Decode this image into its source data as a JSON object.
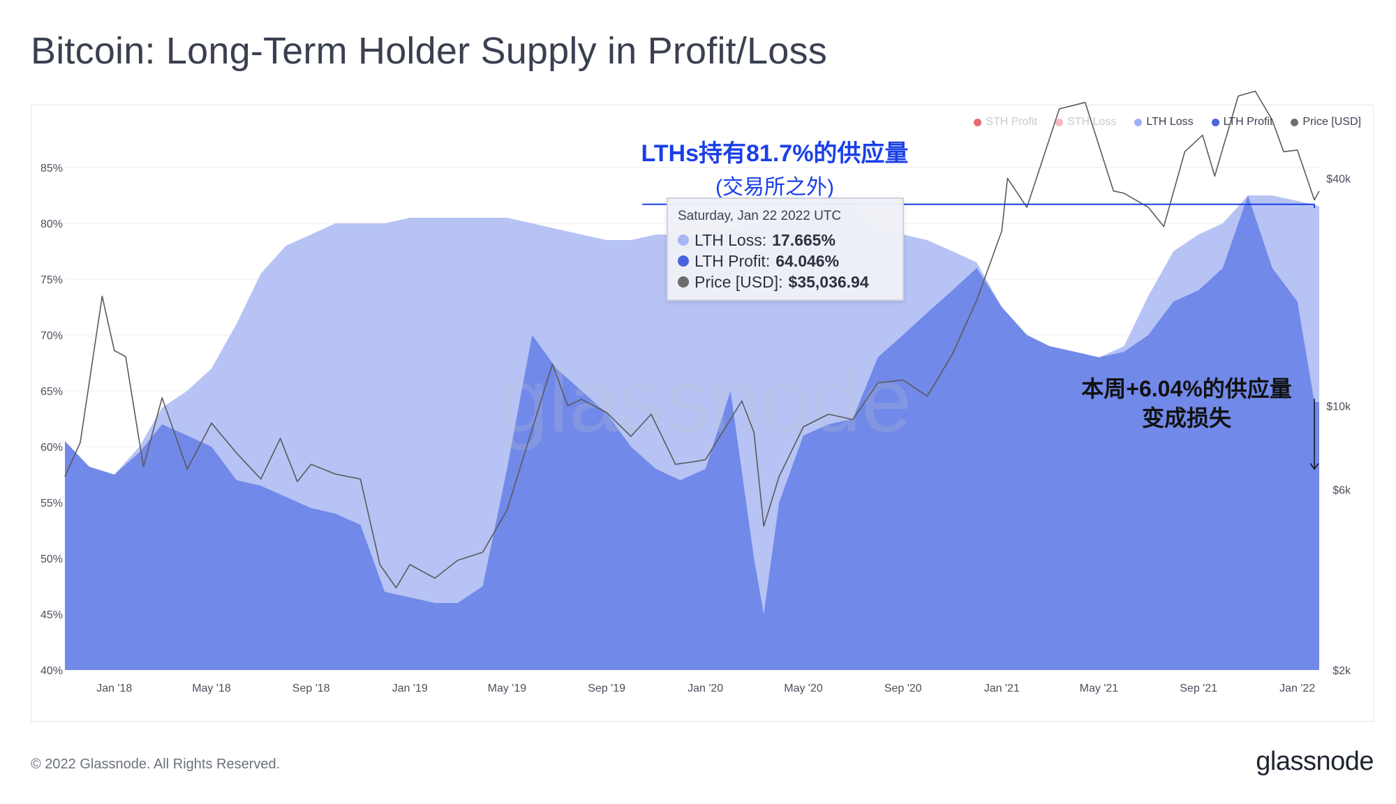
{
  "title": "Bitcoin: Long-Term Holder Supply in Profit/Loss",
  "legend": [
    {
      "label": "STH Profit",
      "color": "#e0353f",
      "faded": true
    },
    {
      "label": "STH Loss",
      "color": "#f0a0a6",
      "faded": true
    },
    {
      "label": "LTH Loss",
      "color": "#9fb1f2",
      "faded": false
    },
    {
      "label": "LTH Profit",
      "color": "#4866e0",
      "faded": false
    },
    {
      "label": "Price [USD]",
      "color": "#6f6f6f",
      "faded": false
    }
  ],
  "tooltip": {
    "date": "Saturday, Jan 22 2022 UTC",
    "rows": [
      {
        "label": "LTH Loss: ",
        "value": "17.665%",
        "color": "#a6b6f4"
      },
      {
        "label": "LTH Profit: ",
        "value": "64.046%",
        "color": "#4a62e0"
      },
      {
        "label": "Price [USD]: ",
        "value": "$35,036.94",
        "color": "#6c6c6c"
      }
    ]
  },
  "annotations": {
    "top_line1": "LTHs持有81.7%的供应量",
    "top_line2": "(交易所之外)",
    "right_line1": "本周+6.04%的供应量",
    "right_line2": "变成损失"
  },
  "watermark": "glassnode",
  "footer": {
    "copyright": "© 2022 Glassnode. All Rights Reserved.",
    "logo": "glassnode"
  },
  "colors": {
    "lth_profit": "#7189e8",
    "lth_loss": "#b6c3f4",
    "price": "#5a5a5a",
    "annotation": "#1a3fe8",
    "grid": "#eceef2"
  },
  "chart_data": {
    "type": "area",
    "x_start": "2017-11-01",
    "x_end": "2022-01-28",
    "x_tick_labels": [
      "Jan '18",
      "May '18",
      "Sep '18",
      "Jan '19",
      "May '19",
      "Sep '19",
      "Jan '20",
      "May '20",
      "Sep '20",
      "Jan '21",
      "May '21",
      "Sep '21",
      "Jan '22"
    ],
    "x_tick_dates": [
      "2018-01-01",
      "2018-05-01",
      "2018-09-01",
      "2019-01-01",
      "2019-05-01",
      "2019-09-01",
      "2020-01-01",
      "2020-05-01",
      "2020-09-01",
      "2021-01-01",
      "2021-05-01",
      "2021-09-01",
      "2022-01-01"
    ],
    "y_left": {
      "ylim": [
        40,
        90
      ],
      "tick_labels": [
        "40%",
        "45%",
        "50%",
        "55%",
        "60%",
        "65%",
        "70%",
        "75%",
        "80%",
        "85%"
      ],
      "tick_values": [
        40,
        45,
        50,
        55,
        60,
        65,
        70,
        75,
        80,
        85
      ]
    },
    "y_right": {
      "scale": "log",
      "ylim": [
        2000,
        60000
      ],
      "tick_labels": [
        "$2k",
        "$6k",
        "$10k",
        "$40k"
      ],
      "tick_values": [
        2000,
        6000,
        10000,
        40000
      ]
    },
    "series": [
      {
        "name": "LTH Profit",
        "stack": "area",
        "values": [
          [
            "2017-11-01",
            60.5
          ],
          [
            "2017-12-01",
            58.2
          ],
          [
            "2018-01-01",
            57.5
          ],
          [
            "2018-02-01",
            59.5
          ],
          [
            "2018-03-01",
            62.0
          ],
          [
            "2018-04-01",
            61.0
          ],
          [
            "2018-05-01",
            60.0
          ],
          [
            "2018-06-01",
            57.0
          ],
          [
            "2018-07-01",
            56.5
          ],
          [
            "2018-08-01",
            55.5
          ],
          [
            "2018-09-01",
            54.5
          ],
          [
            "2018-10-01",
            54.0
          ],
          [
            "2018-11-01",
            53.0
          ],
          [
            "2018-12-01",
            47.0
          ],
          [
            "2019-01-01",
            46.5
          ],
          [
            "2019-02-01",
            46.0
          ],
          [
            "2019-03-01",
            46.0
          ],
          [
            "2019-04-01",
            47.5
          ],
          [
            "2019-05-01",
            58.0
          ],
          [
            "2019-06-01",
            70.0
          ],
          [
            "2019-07-01",
            67.0
          ],
          [
            "2019-08-01",
            65.0
          ],
          [
            "2019-09-01",
            63.0
          ],
          [
            "2019-10-01",
            60.0
          ],
          [
            "2019-11-01",
            58.0
          ],
          [
            "2019-12-01",
            57.0
          ],
          [
            "2020-01-01",
            58.0
          ],
          [
            "2020-02-01",
            65.0
          ],
          [
            "2020-03-01",
            50.0
          ],
          [
            "2020-03-13",
            45.0
          ],
          [
            "2020-04-01",
            55.0
          ],
          [
            "2020-05-01",
            61.0
          ],
          [
            "2020-06-01",
            62.0
          ],
          [
            "2020-07-01",
            62.5
          ],
          [
            "2020-08-01",
            68.0
          ],
          [
            "2020-09-01",
            70.0
          ],
          [
            "2020-10-01",
            72.0
          ],
          [
            "2020-11-01",
            74.0
          ],
          [
            "2020-12-01",
            76.0
          ],
          [
            "2021-01-01",
            72.5
          ],
          [
            "2021-02-01",
            70.0
          ],
          [
            "2021-03-01",
            69.0
          ],
          [
            "2021-04-01",
            68.5
          ],
          [
            "2021-05-01",
            68.0
          ],
          [
            "2021-06-01",
            68.5
          ],
          [
            "2021-07-01",
            70.0
          ],
          [
            "2021-08-01",
            73.0
          ],
          [
            "2021-09-01",
            74.0
          ],
          [
            "2021-10-01",
            76.0
          ],
          [
            "2021-11-01",
            82.5
          ],
          [
            "2021-12-01",
            76.0
          ],
          [
            "2022-01-01",
            73.0
          ],
          [
            "2022-01-22",
            64.0
          ],
          [
            "2022-01-28",
            64.0
          ]
        ]
      },
      {
        "name": "LTH Loss",
        "stack": "area",
        "values": [
          [
            "2017-11-01",
            0.0
          ],
          [
            "2017-12-01",
            0.0
          ],
          [
            "2018-01-01",
            0.0
          ],
          [
            "2018-02-01",
            0.5
          ],
          [
            "2018-03-01",
            1.5
          ],
          [
            "2018-04-01",
            4.0
          ],
          [
            "2018-05-01",
            7.0
          ],
          [
            "2018-06-01",
            14.0
          ],
          [
            "2018-07-01",
            19.0
          ],
          [
            "2018-08-01",
            22.5
          ],
          [
            "2018-09-01",
            24.5
          ],
          [
            "2018-10-01",
            26.0
          ],
          [
            "2018-11-01",
            27.0
          ],
          [
            "2018-12-01",
            33.0
          ],
          [
            "2019-01-01",
            34.0
          ],
          [
            "2019-02-01",
            34.5
          ],
          [
            "2019-03-01",
            34.5
          ],
          [
            "2019-04-01",
            33.0
          ],
          [
            "2019-05-01",
            22.5
          ],
          [
            "2019-06-01",
            10.0
          ],
          [
            "2019-07-01",
            12.5
          ],
          [
            "2019-08-01",
            14.0
          ],
          [
            "2019-09-01",
            15.5
          ],
          [
            "2019-10-01",
            18.5
          ],
          [
            "2019-11-01",
            21.0
          ],
          [
            "2019-12-01",
            22.0
          ],
          [
            "2020-01-01",
            21.0
          ],
          [
            "2020-02-01",
            14.5
          ],
          [
            "2020-03-01",
            30.0
          ],
          [
            "2020-03-13",
            35.0
          ],
          [
            "2020-04-01",
            25.0
          ],
          [
            "2020-05-01",
            19.5
          ],
          [
            "2020-06-01",
            19.5
          ],
          [
            "2020-07-01",
            19.0
          ],
          [
            "2020-08-01",
            11.5
          ],
          [
            "2020-09-01",
            9.0
          ],
          [
            "2020-10-01",
            6.5
          ],
          [
            "2020-11-01",
            3.5
          ],
          [
            "2020-12-01",
            0.5
          ],
          [
            "2021-01-01",
            0.0
          ],
          [
            "2021-02-01",
            0.0
          ],
          [
            "2021-03-01",
            0.0
          ],
          [
            "2021-04-01",
            0.0
          ],
          [
            "2021-05-01",
            0.0
          ],
          [
            "2021-06-01",
            0.5
          ],
          [
            "2021-07-01",
            3.5
          ],
          [
            "2021-08-01",
            4.5
          ],
          [
            "2021-09-01",
            5.0
          ],
          [
            "2021-10-01",
            4.0
          ],
          [
            "2021-11-01",
            0.0
          ],
          [
            "2021-12-01",
            6.5
          ],
          [
            "2022-01-01",
            9.0
          ],
          [
            "2022-01-22",
            17.665
          ],
          [
            "2022-01-28",
            17.5
          ]
        ]
      },
      {
        "name": "Price [USD]",
        "axis": "right",
        "values": [
          [
            "2017-11-01",
            6500
          ],
          [
            "2017-11-20",
            8000
          ],
          [
            "2017-12-17",
            19500
          ],
          [
            "2018-01-01",
            14000
          ],
          [
            "2018-01-15",
            13500
          ],
          [
            "2018-02-06",
            6900
          ],
          [
            "2018-03-01",
            10500
          ],
          [
            "2018-04-01",
            6800
          ],
          [
            "2018-05-01",
            9000
          ],
          [
            "2018-06-01",
            7500
          ],
          [
            "2018-07-01",
            6400
          ],
          [
            "2018-07-25",
            8200
          ],
          [
            "2018-08-15",
            6300
          ],
          [
            "2018-09-01",
            7000
          ],
          [
            "2018-10-01",
            6600
          ],
          [
            "2018-11-01",
            6400
          ],
          [
            "2018-11-25",
            3800
          ],
          [
            "2018-12-15",
            3300
          ],
          [
            "2019-01-01",
            3800
          ],
          [
            "2019-02-01",
            3500
          ],
          [
            "2019-03-01",
            3900
          ],
          [
            "2019-04-01",
            4100
          ],
          [
            "2019-05-01",
            5300
          ],
          [
            "2019-06-26",
            12900
          ],
          [
            "2019-07-15",
            10000
          ],
          [
            "2019-08-01",
            10400
          ],
          [
            "2019-09-01",
            9600
          ],
          [
            "2019-10-01",
            8300
          ],
          [
            "2019-10-26",
            9500
          ],
          [
            "2019-11-25",
            7000
          ],
          [
            "2019-12-15",
            7100
          ],
          [
            "2020-01-01",
            7200
          ],
          [
            "2020-02-15",
            10300
          ],
          [
            "2020-03-01",
            8500
          ],
          [
            "2020-03-13",
            4800
          ],
          [
            "2020-04-01",
            6500
          ],
          [
            "2020-05-01",
            8800
          ],
          [
            "2020-06-01",
            9500
          ],
          [
            "2020-07-01",
            9200
          ],
          [
            "2020-08-01",
            11500
          ],
          [
            "2020-09-01",
            11700
          ],
          [
            "2020-10-01",
            10600
          ],
          [
            "2020-11-01",
            13700
          ],
          [
            "2020-12-01",
            19000
          ],
          [
            "2021-01-01",
            29000
          ],
          [
            "2021-01-08",
            40000
          ],
          [
            "2021-02-01",
            33500
          ],
          [
            "2021-03-13",
            61000
          ],
          [
            "2021-04-14",
            63500
          ],
          [
            "2021-05-19",
            37000
          ],
          [
            "2021-06-01",
            36500
          ],
          [
            "2021-07-01",
            33500
          ],
          [
            "2021-07-20",
            29800
          ],
          [
            "2021-08-15",
            47000
          ],
          [
            "2021-09-06",
            52000
          ],
          [
            "2021-09-21",
            40500
          ],
          [
            "2021-10-01",
            48000
          ],
          [
            "2021-10-20",
            66000
          ],
          [
            "2021-11-10",
            68000
          ],
          [
            "2021-12-01",
            57000
          ],
          [
            "2021-12-15",
            47000
          ],
          [
            "2022-01-01",
            47500
          ],
          [
            "2022-01-22",
            35036.94
          ],
          [
            "2022-01-28",
            37000
          ]
        ]
      }
    ],
    "reference_line": {
      "y": 81.7,
      "x_from": "2019-10-15",
      "x_to": "2022-01-22"
    }
  }
}
